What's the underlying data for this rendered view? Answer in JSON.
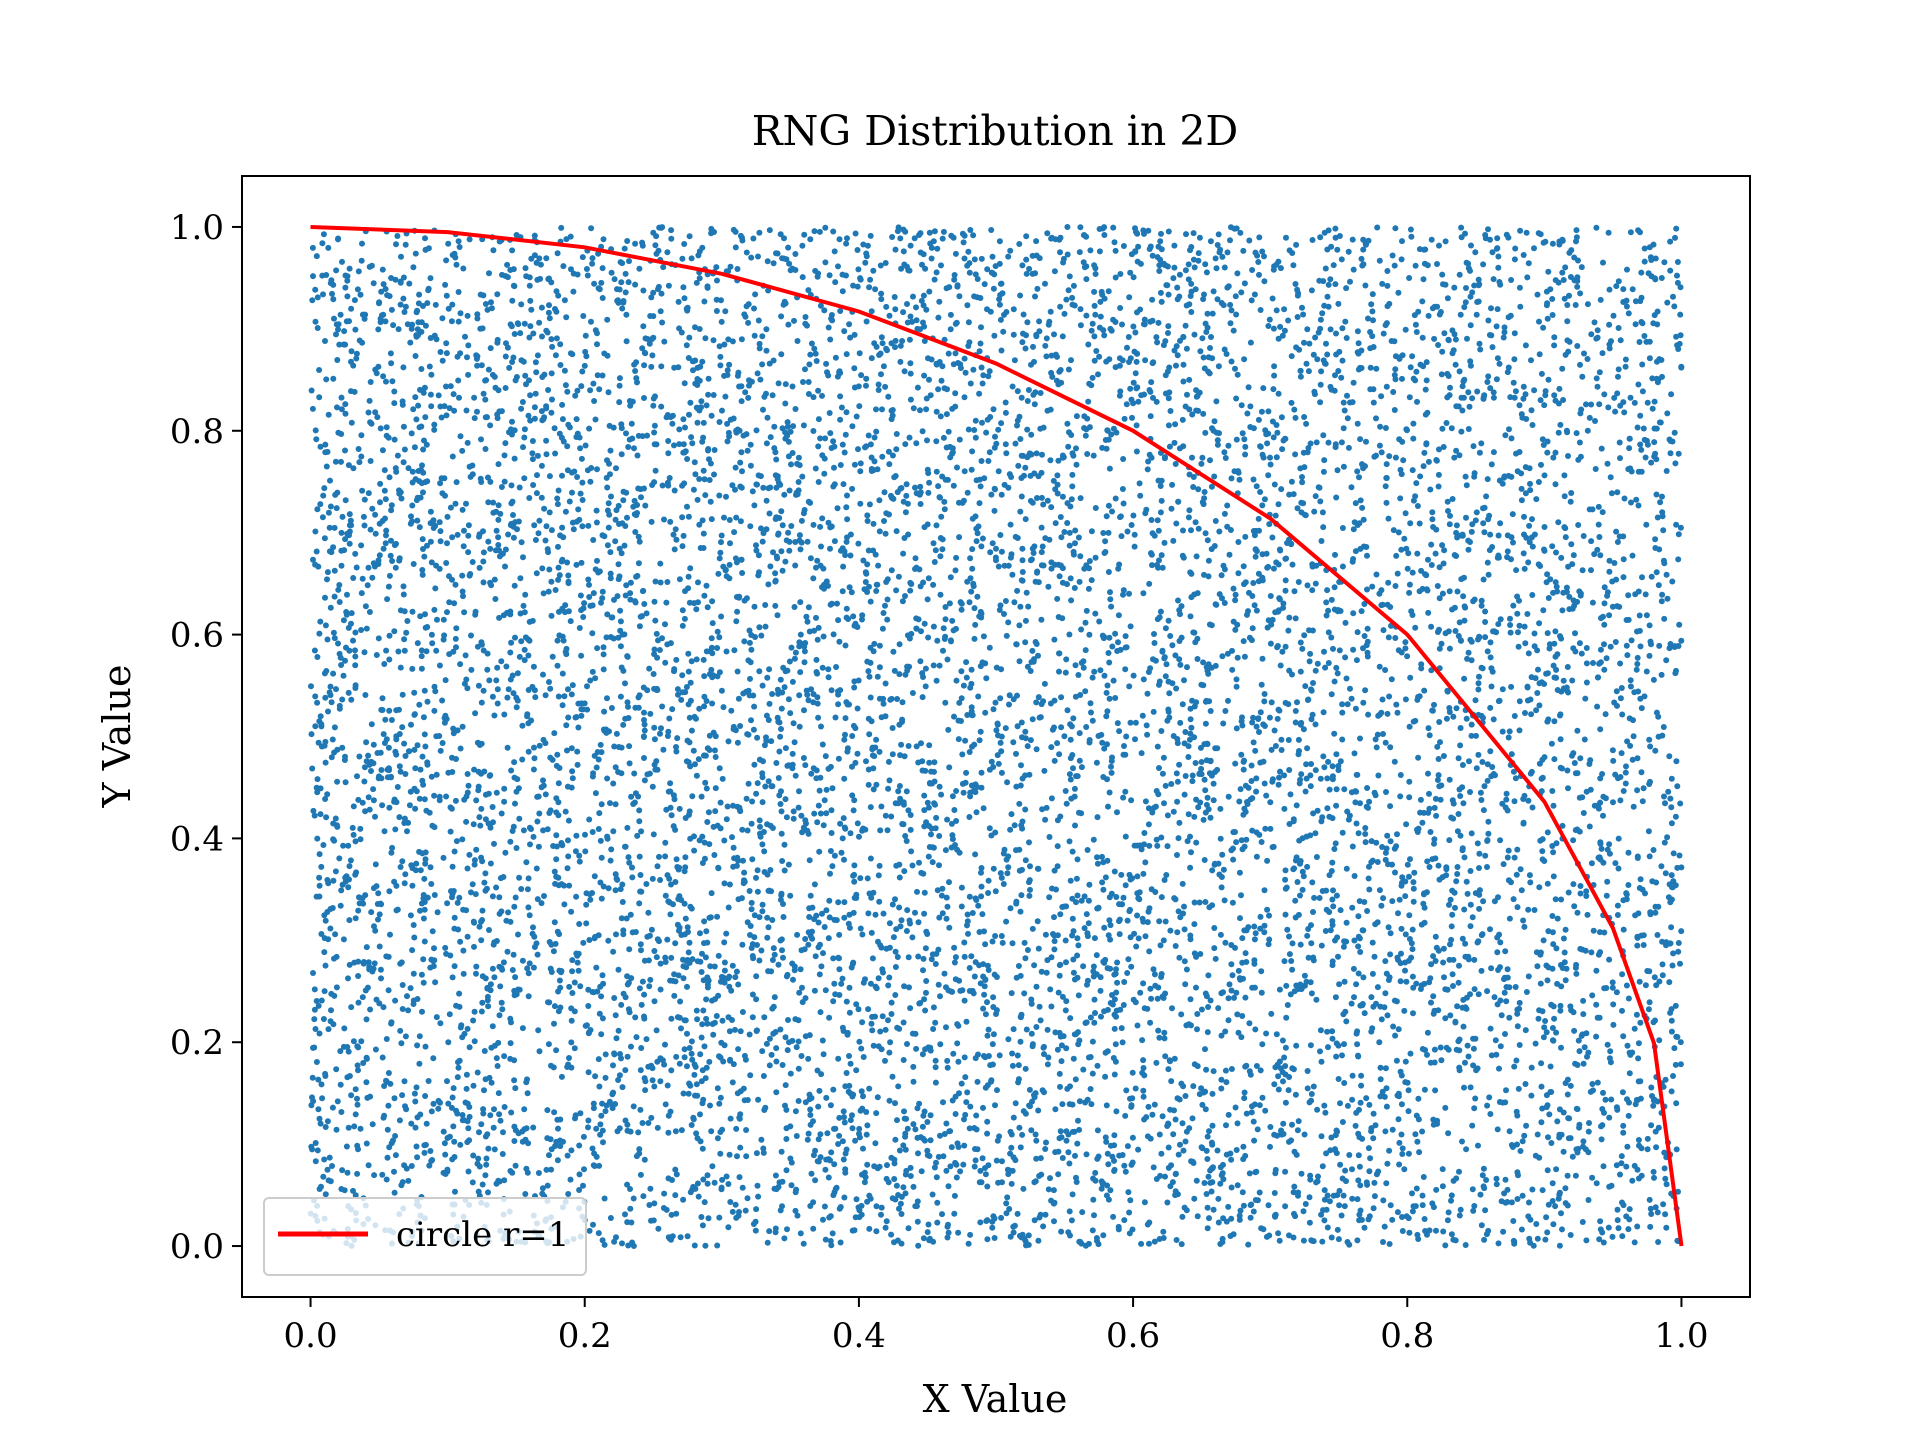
{
  "chart_data": {
    "type": "scatter",
    "title": "RNG Distribution in 2D",
    "xlabel": "X Value",
    "ylabel": "Y Value",
    "xlim": [
      -0.05,
      1.05
    ],
    "ylim": [
      -0.05,
      1.05
    ],
    "x_ticks": [
      0.0,
      0.2,
      0.4,
      0.6,
      0.8,
      1.0
    ],
    "y_ticks": [
      0.0,
      0.2,
      0.4,
      0.6,
      0.8,
      1.0
    ],
    "x_tick_labels": [
      "0.0",
      "0.2",
      "0.4",
      "0.6",
      "0.8",
      "1.0"
    ],
    "y_tick_labels": [
      "0.0",
      "0.2",
      "0.4",
      "0.6",
      "0.8",
      "1.0"
    ],
    "grid": false,
    "legend_position": "lower-left",
    "series": [
      {
        "kind": "points",
        "color": "#1f77b4",
        "distribution": "uniform",
        "x_range": [
          0,
          1
        ],
        "y_range": [
          0,
          1
        ]
      },
      {
        "kind": "line",
        "name": "circle r=1",
        "color": "#ff0000",
        "x": [
          0.0,
          0.1,
          0.2,
          0.3,
          0.4,
          0.5,
          0.6,
          0.7,
          0.8,
          0.9,
          0.95,
          0.98,
          1.0
        ],
        "y": [
          1.0,
          0.995,
          0.98,
          0.954,
          0.917,
          0.866,
          0.8,
          0.714,
          0.6,
          0.436,
          0.312,
          0.199,
          0.0
        ]
      }
    ]
  }
}
